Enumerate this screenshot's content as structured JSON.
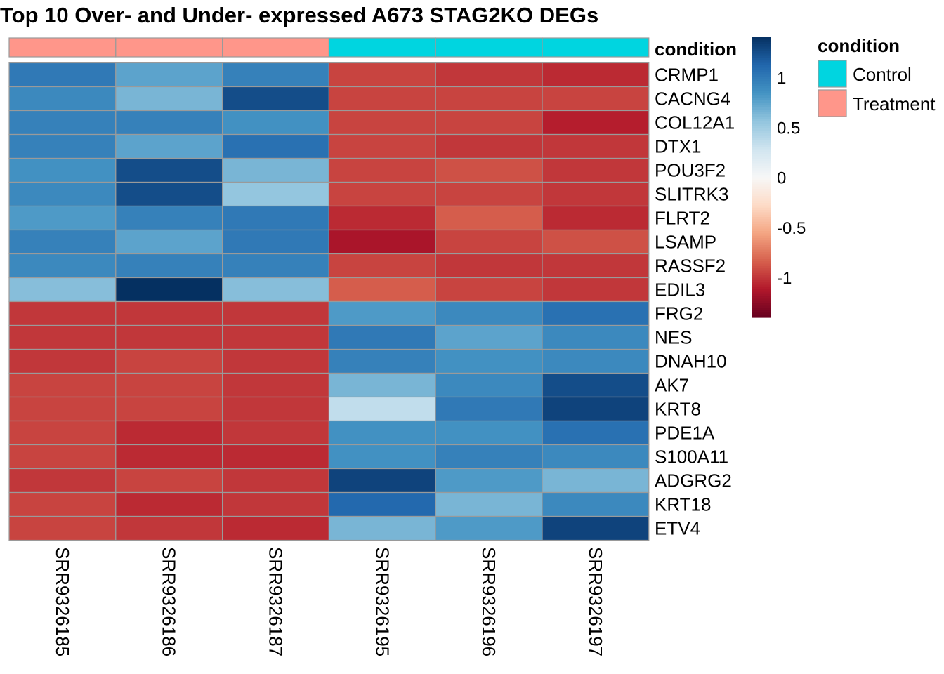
{
  "chart_data": {
    "type": "heatmap",
    "title": "Top 10 Over- and Under- expressed A673 STAG2KO DEGs",
    "columns": [
      "SRR9326185",
      "SRR9326186",
      "SRR9326187",
      "SRR9326195",
      "SRR9326196",
      "SRR9326197"
    ],
    "rows": [
      "CRMP1",
      "CACNG4",
      "COL12A1",
      "DTX1",
      "POU3F2",
      "SLITRK3",
      "FLRT2",
      "LSAMP",
      "RASSF2",
      "EDIL3",
      "FRG2",
      "NES",
      "DNAH10",
      "AK7",
      "KRT8",
      "PDE1A",
      "S100A11",
      "ADGRG2",
      "KRT18",
      "ETV4"
    ],
    "values": [
      [
        1.0,
        0.75,
        0.95,
        -0.95,
        -1.0,
        -1.05
      ],
      [
        0.9,
        0.65,
        1.25,
        -0.95,
        -0.95,
        -0.95
      ],
      [
        0.95,
        0.95,
        0.85,
        -0.95,
        -0.95,
        -1.1
      ],
      [
        0.95,
        0.75,
        1.05,
        -0.95,
        -1.0,
        -1.0
      ],
      [
        0.85,
        1.25,
        0.65,
        -0.95,
        -0.9,
        -1.0
      ],
      [
        0.9,
        1.25,
        0.55,
        -0.95,
        -0.95,
        -1.0
      ],
      [
        0.8,
        0.95,
        1.0,
        -1.05,
        -0.85,
        -1.05
      ],
      [
        0.95,
        0.75,
        1.0,
        -1.15,
        -0.95,
        -0.9
      ],
      [
        0.9,
        0.95,
        0.95,
        -0.95,
        -1.0,
        -1.0
      ],
      [
        0.6,
        1.4,
        0.6,
        -0.85,
        -0.95,
        -1.0
      ],
      [
        -1.0,
        -1.0,
        -1.0,
        0.8,
        0.9,
        1.05
      ],
      [
        -1.0,
        -1.0,
        -1.0,
        1.0,
        0.75,
        0.9
      ],
      [
        -1.0,
        -0.95,
        -1.0,
        0.95,
        0.85,
        0.9
      ],
      [
        -0.95,
        -0.95,
        -1.0,
        0.65,
        0.9,
        1.25
      ],
      [
        -0.95,
        -0.95,
        -1.0,
        0.35,
        1.0,
        1.3
      ],
      [
        -0.95,
        -1.05,
        -1.0,
        0.85,
        0.85,
        1.05
      ],
      [
        -0.95,
        -1.05,
        -1.05,
        0.85,
        0.95,
        0.9
      ],
      [
        -1.0,
        -0.95,
        -1.0,
        1.3,
        0.8,
        0.65
      ],
      [
        -0.95,
        -1.05,
        -1.0,
        1.1,
        0.65,
        0.9
      ],
      [
        -0.95,
        -1.0,
        -1.05,
        0.65,
        0.8,
        1.3
      ]
    ],
    "annotation": {
      "name": "condition",
      "values": [
        "Treatment",
        "Treatment",
        "Treatment",
        "Control",
        "Control",
        "Control"
      ],
      "legend": [
        {
          "label": "Control",
          "color": "#00D5E0"
        },
        {
          "label": "Treatment",
          "color": "#FF968A"
        }
      ]
    },
    "color_scale": {
      "min": -1.4,
      "max": 1.4,
      "ticks": [
        1,
        0.5,
        0,
        -0.5,
        -1
      ],
      "tick_labels": [
        "1",
        "0.5",
        "0",
        "-0.5",
        "-1"
      ],
      "colors": [
        "#67001F",
        "#B2182B",
        "#D6604D",
        "#F4A582",
        "#FDDBC7",
        "#F7F7F7",
        "#D1E5F0",
        "#92C5DE",
        "#4393C3",
        "#2166AC",
        "#053061"
      ]
    },
    "grid": true,
    "legend_placement": "right"
  }
}
